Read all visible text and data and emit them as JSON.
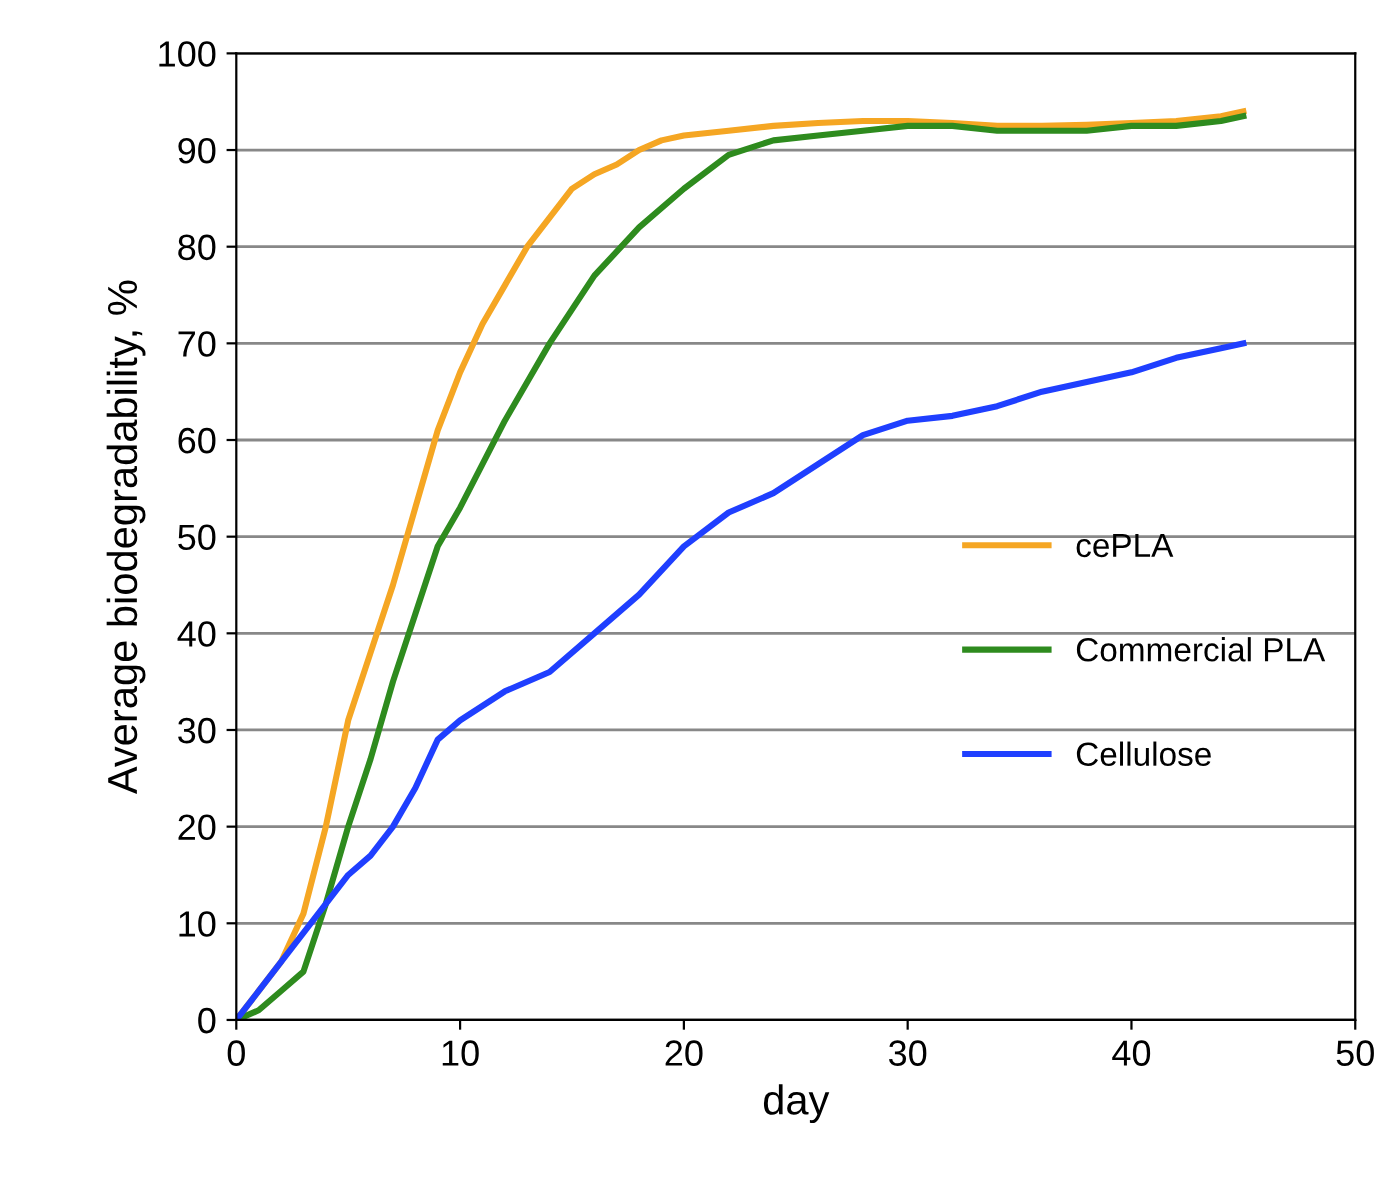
{
  "chart_data": {
    "type": "line",
    "xlabel": "day",
    "ylabel": "Average biodegradability, %",
    "xlim": [
      0,
      50
    ],
    "ylim": [
      0,
      100
    ],
    "xticks": [
      0,
      10,
      20,
      30,
      40,
      50
    ],
    "yticks": [
      0,
      10,
      20,
      30,
      40,
      50,
      60,
      70,
      80,
      90,
      100
    ],
    "grid": "y",
    "legend": "right",
    "marker": "none",
    "line_style": "solid",
    "series": [
      {
        "name": "cePLA",
        "color": "#f5a623",
        "x": [
          0,
          2,
          3,
          4,
          5,
          6,
          7,
          8,
          9,
          10,
          11,
          12,
          13,
          14,
          15,
          16,
          17,
          18,
          19,
          20,
          22,
          24,
          26,
          28,
          30,
          32,
          34,
          36,
          38,
          40,
          42,
          44,
          45
        ],
        "values": [
          0,
          6,
          11,
          20,
          31,
          38,
          45,
          53,
          61,
          67,
          72,
          76,
          80,
          83,
          86,
          87.5,
          88.5,
          90,
          91,
          91.5,
          92,
          92.5,
          92.8,
          93,
          93,
          92.8,
          92.5,
          92.5,
          92.6,
          92.8,
          93,
          93.5,
          94
        ]
      },
      {
        "name": "Commercial PLA",
        "color": "#2e8b1e",
        "x": [
          0,
          1,
          2,
          3,
          4,
          5,
          6,
          7,
          8,
          9,
          10,
          12,
          14,
          16,
          18,
          20,
          22,
          24,
          26,
          28,
          30,
          32,
          34,
          36,
          38,
          40,
          42,
          44,
          45
        ],
        "values": [
          0,
          1,
          3,
          5,
          12,
          20,
          27,
          35,
          42,
          49,
          53,
          62,
          70,
          77,
          82,
          86,
          89.5,
          91,
          91.5,
          92,
          92.5,
          92.5,
          92,
          92,
          92,
          92.5,
          92.5,
          93,
          93.5
        ]
      },
      {
        "name": "Cellulose",
        "color": "#1f3fff",
        "x": [
          0,
          2,
          4,
          5,
          6,
          7,
          8,
          9,
          10,
          12,
          14,
          16,
          18,
          20,
          22,
          24,
          26,
          28,
          30,
          32,
          34,
          36,
          38,
          40,
          42,
          44,
          45
        ],
        "values": [
          0,
          6,
          12,
          15,
          17,
          20,
          24,
          29,
          31,
          34,
          36,
          40,
          44,
          49,
          52.5,
          54.5,
          57.5,
          60.5,
          62,
          62.5,
          63.5,
          65,
          66,
          67,
          68.5,
          69.5,
          70
        ]
      }
    ]
  }
}
